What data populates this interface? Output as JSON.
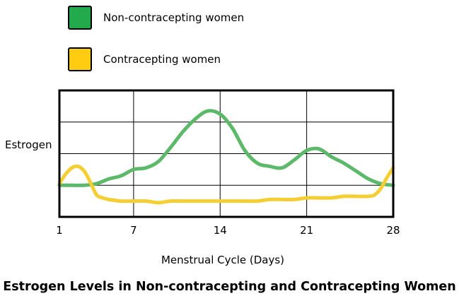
{
  "chart_data": {
    "type": "line",
    "title": "Estrogen Levels in Non-contracepting and Contracepting Women",
    "xlabel": "Menstrual Cycle (Days)",
    "ylabel": "Estrogen",
    "x_ticks": [
      1,
      7,
      14,
      21,
      28
    ],
    "xlim": [
      1,
      28
    ],
    "ylim": [
      0,
      4
    ],
    "grid": true,
    "legend_position": "top-left",
    "series": [
      {
        "name": "Non-contracepting women",
        "color": "#5DB96A",
        "x": [
          1,
          2,
          3,
          4,
          5,
          6,
          7,
          8,
          9,
          10,
          11,
          12,
          13,
          14,
          15,
          16,
          17,
          18,
          19,
          20,
          21,
          22,
          23,
          24,
          25,
          26,
          27,
          28
        ],
        "y": [
          1.0,
          1.0,
          1.0,
          1.05,
          1.2,
          1.3,
          1.5,
          1.55,
          1.75,
          2.2,
          2.7,
          3.1,
          3.35,
          3.25,
          2.8,
          2.1,
          1.7,
          1.6,
          1.55,
          1.8,
          2.1,
          2.15,
          1.9,
          1.7,
          1.45,
          1.2,
          1.05,
          1.0
        ]
      },
      {
        "name": "Contracepting women",
        "color": "#F5CE33",
        "x": [
          1,
          1.5,
          2,
          2.5,
          3,
          3.5,
          4,
          4.5,
          5,
          6,
          7,
          8,
          9,
          10,
          11,
          12,
          13,
          14,
          15,
          16,
          17,
          18,
          19,
          20,
          21,
          22,
          23,
          24,
          25,
          26,
          26.5,
          27,
          27.5,
          28
        ],
        "y": [
          1.05,
          1.35,
          1.55,
          1.6,
          1.45,
          1.1,
          0.7,
          0.6,
          0.55,
          0.5,
          0.5,
          0.5,
          0.45,
          0.5,
          0.5,
          0.5,
          0.5,
          0.5,
          0.5,
          0.5,
          0.5,
          0.55,
          0.55,
          0.55,
          0.6,
          0.6,
          0.6,
          0.65,
          0.65,
          0.65,
          0.7,
          0.9,
          1.25,
          1.55
        ]
      }
    ]
  },
  "legend": {
    "items": [
      {
        "label": "Non-contracepting women",
        "color": "#22AA4D"
      },
      {
        "label": "Contracepting women",
        "color": "#FFCC11"
      }
    ]
  }
}
